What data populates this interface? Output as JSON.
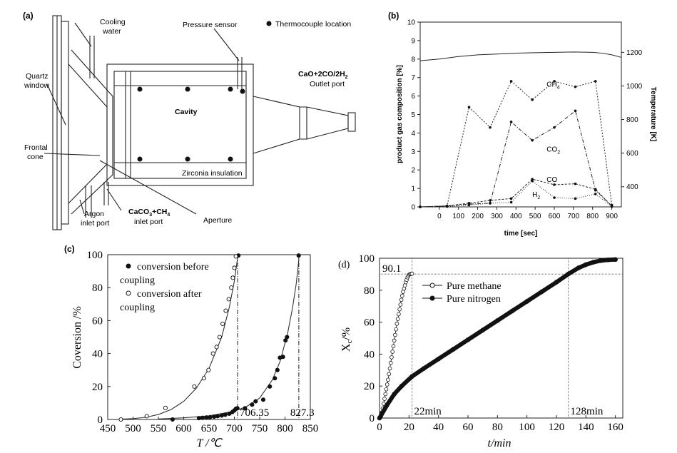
{
  "panel_labels": [
    "(a)",
    "(b)",
    "(c)",
    "(d)"
  ],
  "diagram_a": {
    "labels": {
      "cooling_water": [
        "Cooling",
        "water"
      ],
      "pressure_sensor": "Pressure sensor",
      "thermocouple": "Thermocouple location",
      "quartz_window": [
        "Quartz",
        "window"
      ],
      "outlet_formula": "CaO+2CO/2H",
      "outlet_sub": "2",
      "outlet_port": "Outlet port",
      "cavity": "Cavity",
      "frontal_cone": [
        "Frontal",
        "cone"
      ],
      "zirconia": "Zirconia insulation",
      "argon": [
        "Argon",
        "inlet port"
      ],
      "caco3_a": "CaCO",
      "caco3_sub": "3",
      "caco3_b": "+CH",
      "caco3_sub2": "4",
      "caco3_line2": "inlet port",
      "aperture": "Aperture"
    }
  },
  "chart_data": [
    {
      "panel": "(b)",
      "type": "line",
      "xlabel": "time [sec]",
      "ylabel": "product gas composition [%]",
      "y2label": "Temperature [K]",
      "xlim": [
        -100,
        950
      ],
      "ylim": [
        0,
        10
      ],
      "y2lim": [
        280,
        1380
      ],
      "x_ticks": [
        0,
        100,
        200,
        300,
        400,
        500,
        600,
        700,
        800,
        900
      ],
      "y_ticks": [
        0,
        1,
        2,
        3,
        4,
        5,
        6,
        7,
        8,
        9,
        10
      ],
      "y2_ticks": [
        400,
        600,
        800,
        1000,
        1200
      ],
      "series": [
        {
          "name": "CH4",
          "label": "CH",
          "sub": "4",
          "axis": "left",
          "x": [
            -100,
            40,
            155,
            265,
            375,
            485,
            600,
            710,
            815,
            900
          ],
          "y": [
            0.0,
            0.05,
            5.4,
            4.3,
            6.8,
            5.8,
            6.8,
            6.5,
            6.8,
            0.1
          ]
        },
        {
          "name": "CO2",
          "label": "CO",
          "sub": "2",
          "axis": "left",
          "x": [
            -100,
            40,
            155,
            265,
            375,
            485,
            600,
            710,
            815,
            900
          ],
          "y": [
            0.0,
            0.05,
            0.15,
            0.2,
            4.6,
            3.6,
            4.3,
            5.2,
            0.9,
            0.05
          ]
        },
        {
          "name": "CO",
          "label": "CO",
          "sub": "",
          "axis": "left",
          "x": [
            -100,
            40,
            155,
            265,
            375,
            485,
            600,
            710,
            815,
            900
          ],
          "y": [
            0.0,
            0.05,
            0.2,
            0.35,
            0.45,
            1.5,
            1.2,
            1.25,
            0.95,
            0.05
          ]
        },
        {
          "name": "H2",
          "label": "H",
          "sub": "2",
          "axis": "left",
          "x": [
            -100,
            40,
            155,
            265,
            375,
            485,
            600,
            710,
            815,
            900
          ],
          "y": [
            0.0,
            0.02,
            0.1,
            0.2,
            0.25,
            1.4,
            0.5,
            0.45,
            0.7,
            0.02
          ]
        },
        {
          "name": "Temperature",
          "axis": "right",
          "x": [
            -100,
            0,
            100,
            200,
            300,
            400,
            500,
            600,
            700,
            800,
            850,
            900,
            950
          ],
          "y": [
            1150,
            1160,
            1175,
            1185,
            1190,
            1195,
            1198,
            1200,
            1202,
            1200,
            1195,
            1185,
            1170
          ]
        }
      ]
    },
    {
      "panel": "(c)",
      "type": "scatter",
      "xlabel": "T /℃",
      "ylabel": "Coversion /%",
      "xlim": [
        450,
        850
      ],
      "ylim": [
        0,
        100
      ],
      "x_ticks": [
        450,
        500,
        550,
        600,
        650,
        700,
        750,
        800,
        850
      ],
      "y_ticks": [
        0,
        20,
        40,
        60,
        80,
        100
      ],
      "legend": [
        {
          "label_lines": [
            "conversion before",
            "coupling"
          ],
          "marker": "filled"
        },
        {
          "label_lines": [
            "conversion after",
            "coupling"
          ],
          "marker": "open"
        }
      ],
      "vlines": [
        {
          "x": 706.35,
          "label": "706.35"
        },
        {
          "x": 827.3,
          "label": "827.3"
        }
      ],
      "series": [
        {
          "name": "conversion before coupling",
          "marker": "filled",
          "x": [
            578,
            630,
            637,
            645,
            652,
            660,
            667,
            675,
            682,
            690,
            696,
            700,
            703,
            706,
            708,
            721,
            735,
            742,
            757,
            770,
            780,
            785,
            790,
            796,
            801,
            804,
            827
          ],
          "y": [
            0.0,
            0.8,
            1.0,
            1.2,
            1.4,
            1.7,
            2.0,
            2.4,
            2.9,
            3.5,
            4.5,
            5.5,
            6.5,
            6.8,
            99.5,
            6.8,
            9.0,
            11.0,
            12.0,
            20.0,
            25.0,
            30.0,
            37.5,
            38.0,
            48.0,
            50.0,
            99.5
          ]
        },
        {
          "name": "conversion after coupling",
          "marker": "open",
          "x": [
            476,
            527,
            564,
            621,
            640,
            649,
            658,
            665,
            671,
            677,
            683,
            689,
            694,
            697,
            700,
            703
          ],
          "y": [
            0.0,
            2.0,
            7.0,
            20.0,
            25.0,
            30.0,
            40.0,
            44.0,
            50.0,
            58.0,
            66.0,
            73.0,
            80.0,
            86.0,
            92.0,
            99.0
          ]
        }
      ],
      "fit_curves": [
        {
          "name": "fit after coupling",
          "x": [
            475,
            500,
            525,
            550,
            575,
            600,
            625,
            650,
            675,
            690,
            700,
            705,
            707
          ],
          "y": [
            0.2,
            0.5,
            1.3,
            3.0,
            6.0,
            11.0,
            19.0,
            31.0,
            50.0,
            68.0,
            84.0,
            95.0,
            100.0
          ]
        },
        {
          "name": "fit before coupling",
          "x": [
            550,
            600,
            650,
            700,
            725,
            750,
            775,
            790,
            805,
            815,
            822,
            826,
            828
          ],
          "y": [
            0.3,
            1.0,
            2.2,
            5.0,
            8.0,
            13.0,
            24.0,
            35.0,
            52.0,
            68.0,
            82.0,
            93.0,
            100.0
          ]
        }
      ]
    },
    {
      "panel": "(d)",
      "type": "line",
      "xlabel": "t/min",
      "ylabel": "X",
      "ylabel_sub": "c",
      "ylabel_tail": "/%",
      "xlim": [
        0,
        165
      ],
      "ylim": [
        0,
        100
      ],
      "x_ticks": [
        0,
        20,
        40,
        60,
        80,
        100,
        120,
        140,
        160
      ],
      "y_ticks": [
        0,
        20,
        40,
        60,
        80,
        100
      ],
      "hline": {
        "y": 90.1,
        "label": "90.1"
      },
      "vlines": [
        {
          "x": 22,
          "label": "22min"
        },
        {
          "x": 128,
          "label": "128min"
        }
      ],
      "legend": [
        {
          "label": "Pure methane",
          "marker": "open"
        },
        {
          "label": "Pure nitrogen",
          "marker": "filled"
        }
      ],
      "series": [
        {
          "name": "Pure methane",
          "marker": "open",
          "x": [
            1,
            1.6,
            2.2,
            2.8,
            3.4,
            4,
            4.6,
            5.2,
            5.8,
            6.4,
            7,
            7.6,
            8.2,
            8.8,
            9.4,
            10,
            10.6,
            11.2,
            11.8,
            12.4,
            13,
            13.6,
            14.2,
            14.8,
            15.4,
            16,
            16.6,
            17.2,
            17.8,
            18.4,
            19,
            19.6,
            20.2,
            20.8,
            21.4,
            22
          ],
          "y": [
            1.0,
            3.5,
            6.0,
            9.0,
            12.0,
            15.0,
            18.0,
            21.0,
            24.0,
            27.5,
            31.0,
            34.5,
            38.0,
            41.5,
            45.0,
            48.5,
            52.0,
            55.5,
            59.0,
            62.0,
            65.0,
            68.0,
            71.0,
            74.0,
            76.5,
            79.0,
            81.0,
            83.0,
            85.0,
            86.5,
            88.0,
            89.0,
            89.8,
            90.1,
            90.2,
            90.3
          ]
        },
        {
          "name": "Pure nitrogen",
          "marker": "filled",
          "x": [
            0,
            5,
            10,
            15,
            22,
            30,
            40,
            50,
            60,
            70,
            80,
            90,
            100,
            110,
            120,
            128,
            135,
            140,
            145,
            150,
            155,
            160
          ],
          "y": [
            0.0,
            8.0,
            15.0,
            20.0,
            26.0,
            31.0,
            37.0,
            43.0,
            49.0,
            55.0,
            61.0,
            67.0,
            73.0,
            79.0,
            85.0,
            90.1,
            94.0,
            96.0,
            97.5,
            98.5,
            99.0,
            99.2
          ]
        }
      ]
    }
  ]
}
